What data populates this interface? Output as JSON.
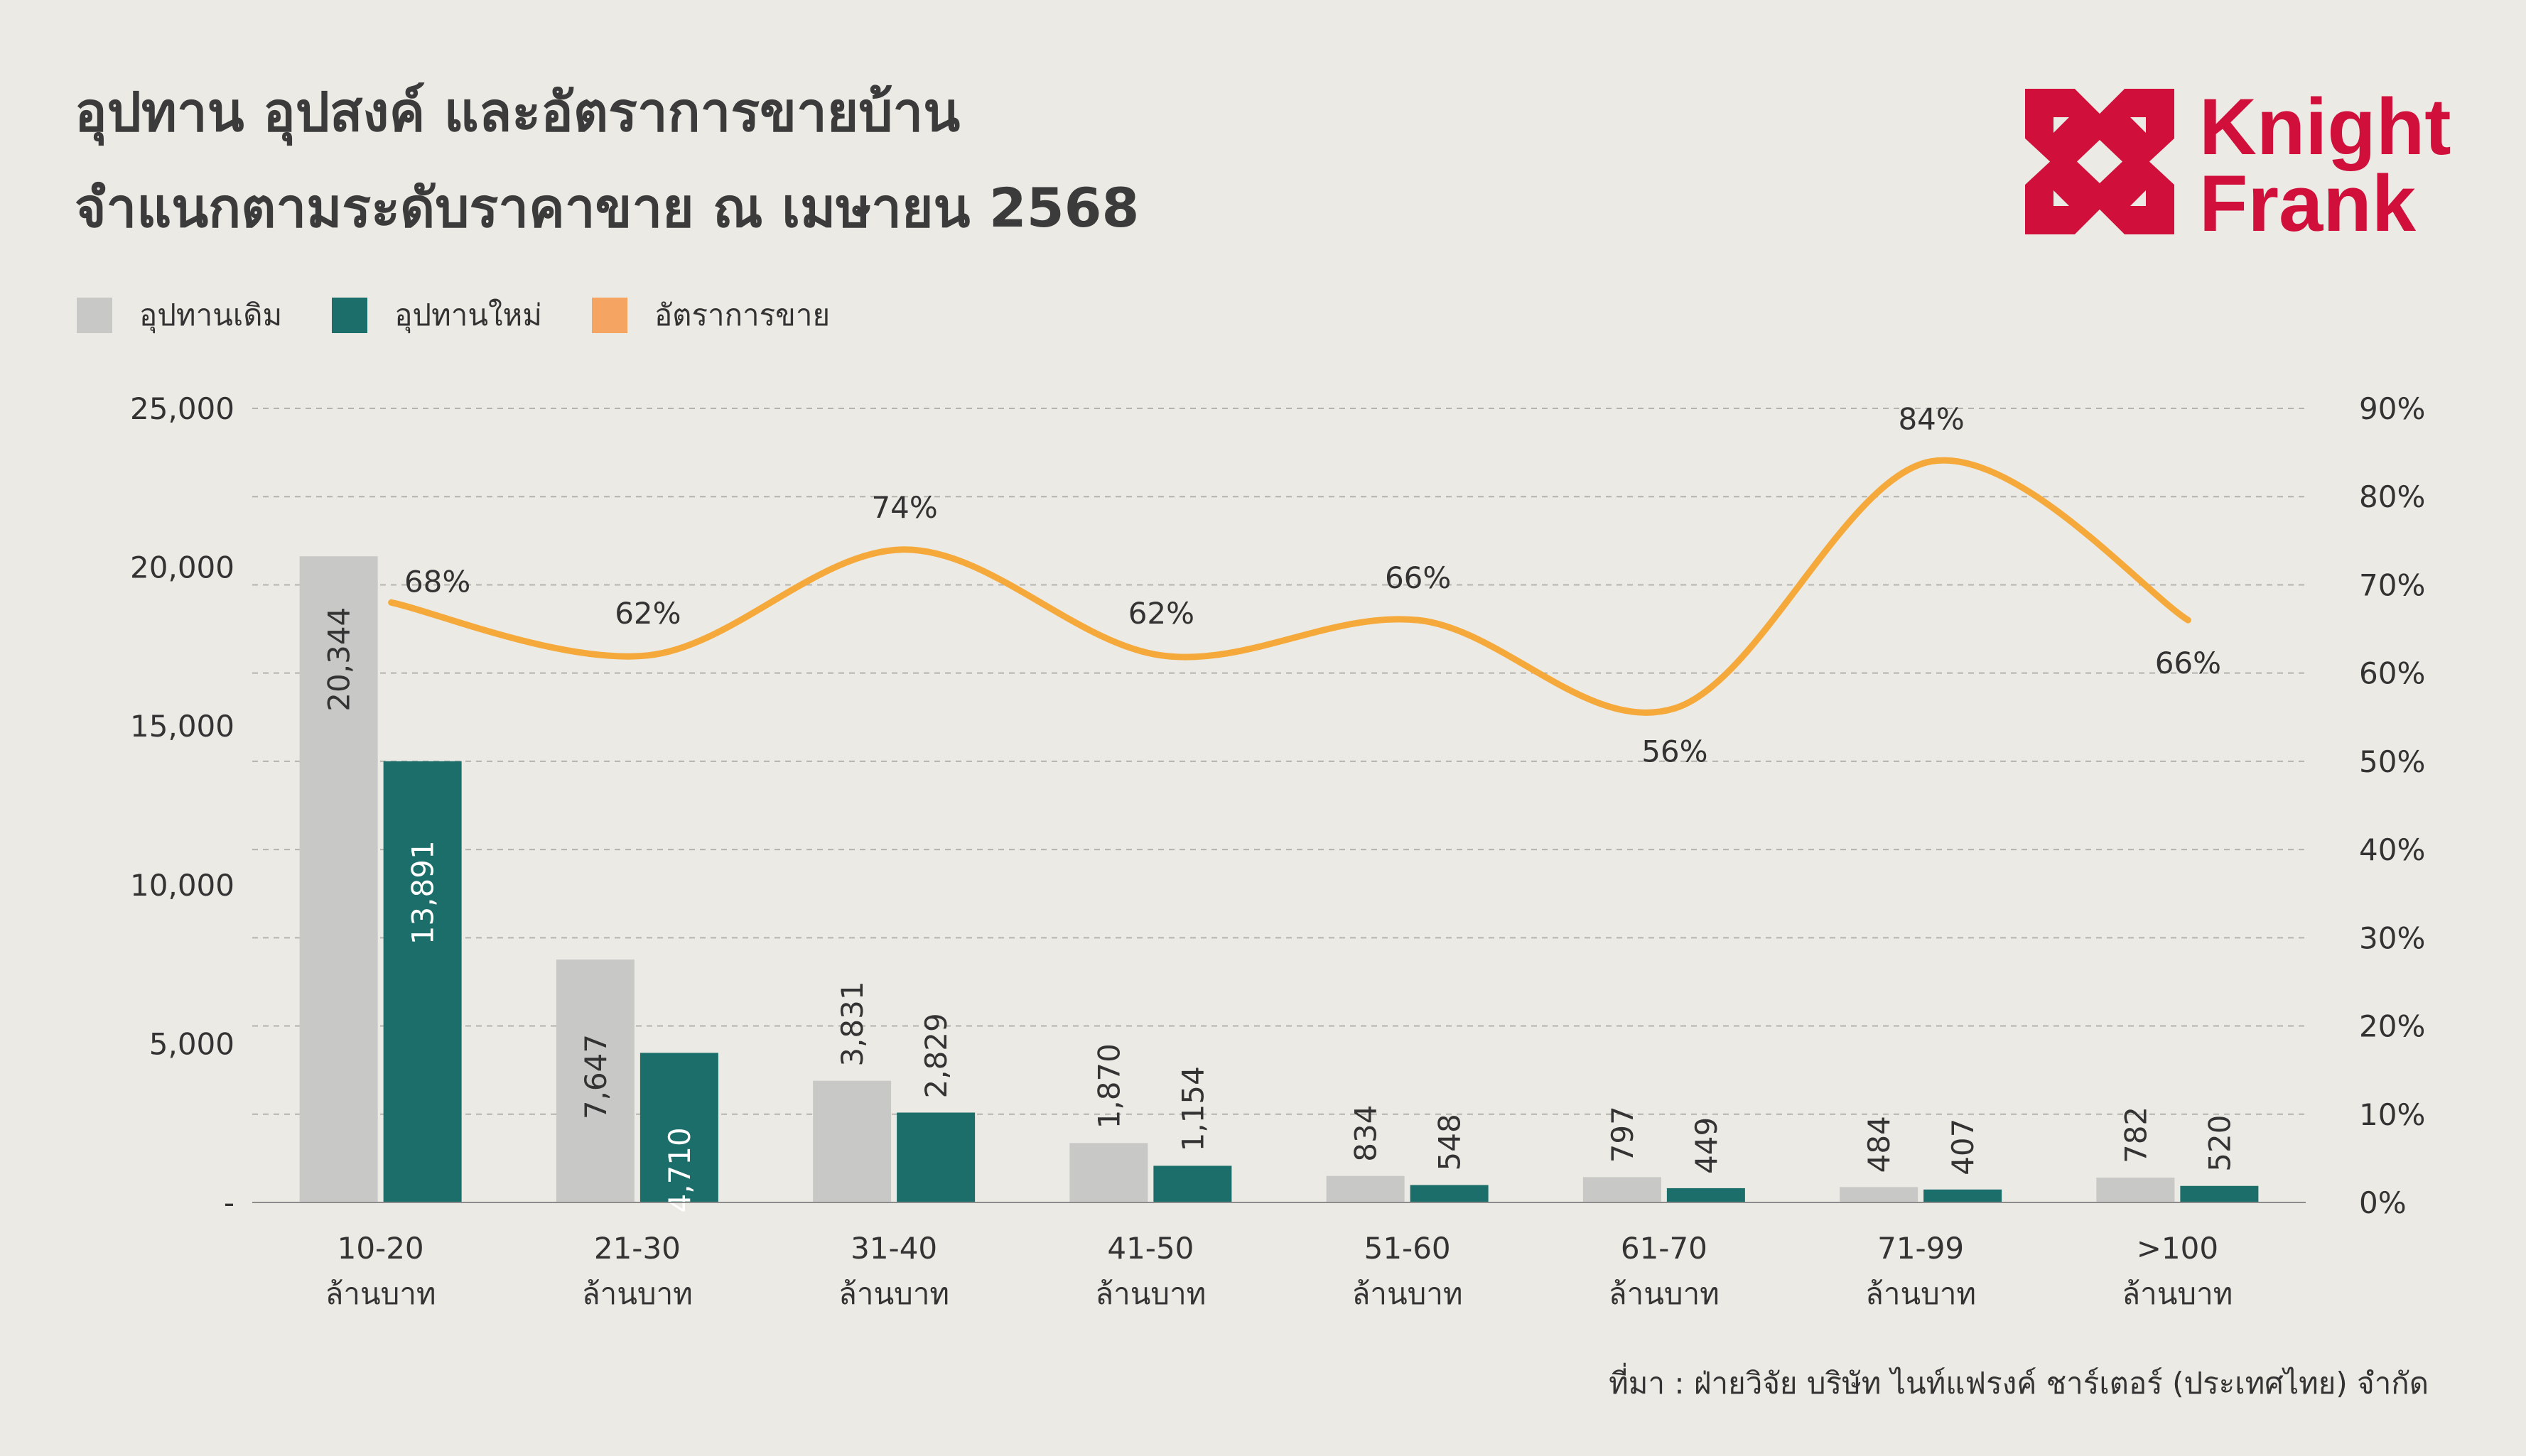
{
  "title": {
    "line1": "อุปทาน อุปสงค์ และอัตราการขายบ้าน",
    "line2": "จำแนกตามระดับราคาขาย ณ เมษายน 2568"
  },
  "logo": {
    "line1": "Knight",
    "line2": "Frank",
    "color": "#D0103A"
  },
  "legend": [
    {
      "label": "อุปทานเดิม",
      "color": "#C8C8C6"
    },
    {
      "label": "อุปทานใหม่",
      "color": "#1B6E69"
    },
    {
      "label": "อัตราการขาย",
      "color": "#F5A462"
    }
  ],
  "source": "ที่มา : ฝ่ายวิจัย บริษัท ไนท์แฟรงค์ ชาร์เตอร์ (ประเทศไทย) จำกัด",
  "chart_data": {
    "type": "bar",
    "categories": [
      [
        "10-20",
        "ล้านบาท"
      ],
      [
        "21-30",
        "ล้านบาท"
      ],
      [
        "31-40",
        "ล้านบาท"
      ],
      [
        "41-50",
        "ล้านบาท"
      ],
      [
        "51-60",
        "ล้านบาท"
      ],
      [
        "61-70",
        "ล้านบาท"
      ],
      [
        "71-99",
        "ล้านบาท"
      ],
      [
        ">100",
        "ล้านบาท"
      ]
    ],
    "series": [
      {
        "name": "อุปทานเดิม",
        "type": "bar",
        "axis": "left",
        "color": "#C8C8C6",
        "values": [
          20344,
          7647,
          3831,
          1870,
          834,
          797,
          484,
          782
        ],
        "labels": [
          "20,344",
          "7,647",
          "3,831",
          "1,870",
          "834",
          "797",
          "484",
          "782"
        ]
      },
      {
        "name": "อุปทานใหม่",
        "type": "bar",
        "axis": "left",
        "color": "#1B6E69",
        "values": [
          13891,
          4710,
          2829,
          1154,
          548,
          449,
          407,
          520
        ],
        "labels": [
          "13,891",
          "4,710",
          "2,829",
          "1,154",
          "548",
          "449",
          "407",
          "520"
        ]
      },
      {
        "name": "อัตราการขาย",
        "type": "line",
        "axis": "right",
        "color": "#F5A93B",
        "values": [
          68,
          62,
          74,
          62,
          66,
          56,
          84,
          66
        ],
        "labels": [
          "68%",
          "62%",
          "74%",
          "62%",
          "66%",
          "56%",
          "84%",
          "66%"
        ]
      }
    ],
    "left_axis": {
      "ylim": [
        0,
        25000
      ],
      "ticks": [
        0,
        5000,
        10000,
        15000,
        20000,
        25000
      ],
      "tick_labels": [
        "-",
        "5,000",
        "10,000",
        "15,000",
        "20,000",
        "25,000"
      ]
    },
    "right_axis": {
      "ylim": [
        0,
        90
      ],
      "ticks": [
        0,
        10,
        20,
        30,
        40,
        50,
        60,
        70,
        80,
        90
      ],
      "tick_labels": [
        "0%",
        "10%",
        "20%",
        "30%",
        "40%",
        "50%",
        "60%",
        "70%",
        "80%",
        "90%"
      ]
    },
    "grid": true,
    "legend_position": "top-left"
  }
}
